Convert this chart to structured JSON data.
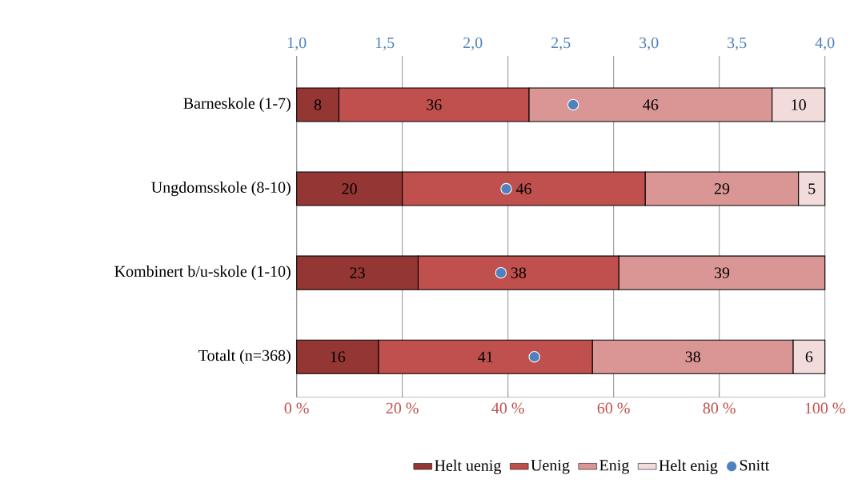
{
  "chart_data": {
    "type": "bar",
    "orientation": "horizontal",
    "stacked": true,
    "categories": [
      "Barneskole (1-7)",
      "Ungdomsskole (8-10)",
      "Kombinert b/u-skole (1-10)",
      "Totalt (n=368)"
    ],
    "series": [
      {
        "name": "Helt uenig",
        "color": "#943634",
        "values": [
          8,
          20,
          23,
          15.5
        ],
        "value_labels": [
          "8",
          "20",
          "23",
          "16"
        ]
      },
      {
        "name": "Uenig",
        "color": "#c0504d",
        "values": [
          36,
          46,
          38,
          40.5
        ],
        "value_labels": [
          "36",
          "46",
          "38",
          "41"
        ]
      },
      {
        "name": "Enig",
        "color": "#d99694",
        "values": [
          46,
          29,
          39,
          38
        ],
        "value_labels": [
          "46",
          "29",
          "39",
          "38"
        ]
      },
      {
        "name": "Helt enig",
        "color": "#f2dcdb",
        "values": [
          10,
          5,
          null,
          6
        ],
        "value_labels": [
          "10",
          "5",
          null,
          "6"
        ]
      },
      {
        "name": "Snitt",
        "type": "scatter",
        "axis": "x2",
        "marker": "circle",
        "color": "#4f81bd",
        "values": [
          2.57,
          2.19,
          2.16,
          2.35
        ]
      }
    ],
    "xlim": [
      0,
      100
    ],
    "xticks": [
      {
        "value": 0,
        "label": "0 %"
      },
      {
        "value": 20,
        "label": "20 %"
      },
      {
        "value": 40,
        "label": "40 %"
      },
      {
        "value": 60,
        "label": "60 %"
      },
      {
        "value": 80,
        "label": "80 %"
      },
      {
        "value": 100,
        "label": "100 %"
      }
    ],
    "x2lim": [
      1,
      4
    ],
    "x2ticks": [
      {
        "value": 1,
        "label": "1,0"
      },
      {
        "value": 1.5,
        "label": "1,5"
      },
      {
        "value": 2,
        "label": "2,0"
      },
      {
        "value": 2.5,
        "label": "2,5"
      },
      {
        "value": 3,
        "label": "3,0"
      },
      {
        "value": 3.5,
        "label": "3,5"
      },
      {
        "value": 4,
        "label": "4,0"
      }
    ],
    "grid": "x",
    "legend": "bottom"
  }
}
